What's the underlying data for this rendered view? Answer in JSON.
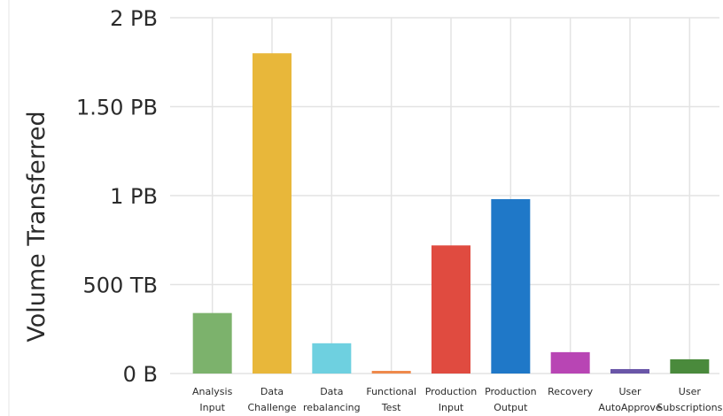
{
  "chart_data": {
    "type": "bar",
    "title": "",
    "xlabel": "",
    "ylabel": "Volume Transferred",
    "unit": "PB",
    "ylim": [
      0,
      2
    ],
    "yticks": [
      {
        "value": 0,
        "label": "0 B"
      },
      {
        "value": 0.5,
        "label": "500 TB"
      },
      {
        "value": 1,
        "label": "1 PB"
      },
      {
        "value": 1.5,
        "label": "1.50 PB"
      },
      {
        "value": 2,
        "label": "2 PB"
      }
    ],
    "grid": true,
    "categories": [
      [
        "Analysis",
        "Input"
      ],
      [
        "Data",
        "Challenge"
      ],
      [
        "Data",
        "rebalancing"
      ],
      [
        "Functional",
        "Test"
      ],
      [
        "Production",
        "Input"
      ],
      [
        "Production",
        "Output"
      ],
      [
        "Recovery"
      ],
      [
        "User",
        "AutoApprove"
      ],
      [
        "User",
        "Subscriptions"
      ]
    ],
    "values": [
      0.34,
      1.8,
      0.17,
      0.01,
      0.72,
      0.98,
      0.12,
      0.025,
      0.08
    ],
    "colors": [
      "#7cb26c",
      "#e8b73a",
      "#6ed0e0",
      "#ef8a4c",
      "#e04b40",
      "#1f78c8",
      "#b845b4",
      "#6a56a8",
      "#4a8a3c"
    ]
  }
}
